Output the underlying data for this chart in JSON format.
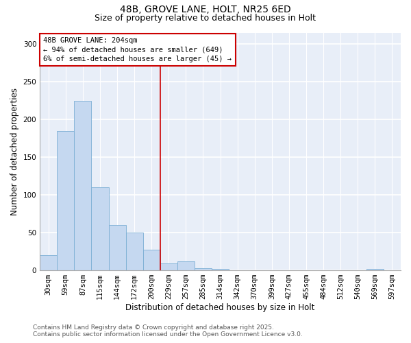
{
  "title_line1": "48B, GROVE LANE, HOLT, NR25 6ED",
  "title_line2": "Size of property relative to detached houses in Holt",
  "xlabel": "Distribution of detached houses by size in Holt",
  "ylabel": "Number of detached properties",
  "categories": [
    "30sqm",
    "59sqm",
    "87sqm",
    "115sqm",
    "144sqm",
    "172sqm",
    "200sqm",
    "229sqm",
    "257sqm",
    "285sqm",
    "314sqm",
    "342sqm",
    "370sqm",
    "399sqm",
    "427sqm",
    "455sqm",
    "484sqm",
    "512sqm",
    "540sqm",
    "569sqm",
    "597sqm"
  ],
  "values": [
    20,
    185,
    225,
    110,
    60,
    50,
    27,
    9,
    12,
    3,
    2,
    0,
    0,
    0,
    0,
    0,
    0,
    0,
    0,
    2,
    0
  ],
  "bar_color": "#c5d8f0",
  "bar_edge_color": "#7baed4",
  "vline_color": "#cc0000",
  "annotation_text": "48B GROVE LANE: 204sqm\n← 94% of detached houses are smaller (649)\n6% of semi-detached houses are larger (45) →",
  "annotation_box_color": "white",
  "annotation_box_edge_color": "#cc0000",
  "ylim": [
    0,
    315
  ],
  "yticks": [
    0,
    50,
    100,
    150,
    200,
    250,
    300
  ],
  "background_color": "#e8eef8",
  "grid_color": "white",
  "footer_line1": "Contains HM Land Registry data © Crown copyright and database right 2025.",
  "footer_line2": "Contains public sector information licensed under the Open Government Licence v3.0.",
  "title_fontsize": 10,
  "subtitle_fontsize": 9,
  "axis_label_fontsize": 8.5,
  "tick_fontsize": 7.5,
  "annotation_fontsize": 7.5,
  "footer_fontsize": 6.5,
  "vline_x": 6.5
}
